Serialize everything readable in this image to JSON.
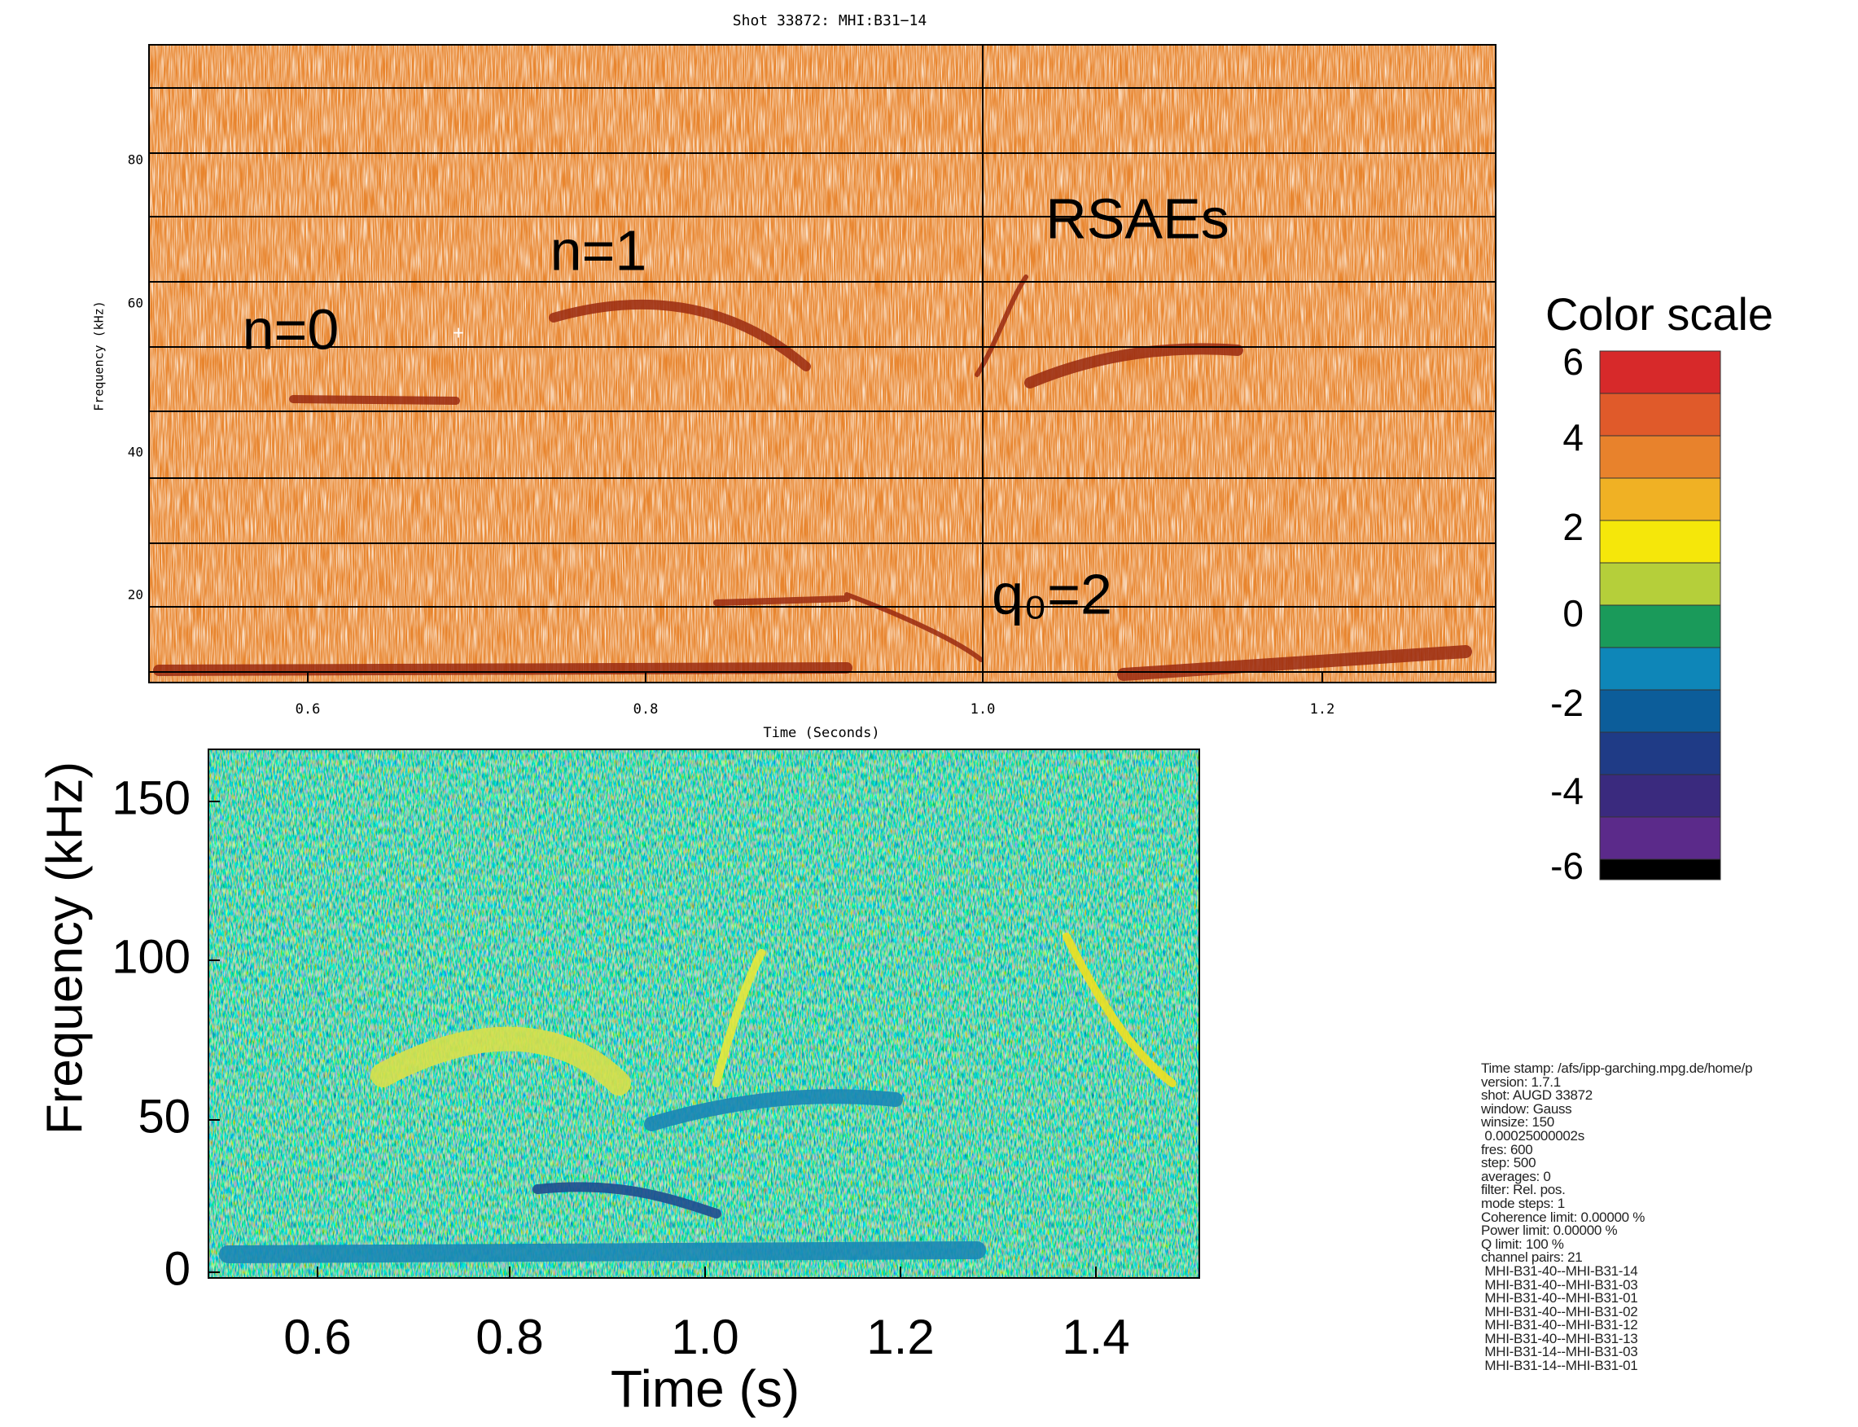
{
  "top_plot": {
    "title": "Shot 33872: MHI:B31−14",
    "y_label": "Frequency (kHz)",
    "x_label": "Time (Seconds)",
    "y_ticks": [
      "80",
      "60",
      "40",
      "20"
    ],
    "x_ticks": [
      "0.6",
      "0.8",
      "1.0",
      "1.2"
    ],
    "annotations": [
      "n=0",
      "n=1",
      "RSAEs",
      "q₀=2"
    ]
  },
  "bottom_plot": {
    "y_label": "Frequency (kHz)",
    "x_label": "Time (s)",
    "y_ticks": [
      "150",
      "100",
      "50",
      "0"
    ],
    "x_ticks": [
      "0.6",
      "0.8",
      "1.0",
      "1.2",
      "1.4"
    ]
  },
  "color_scale": {
    "title": "Color scale",
    "labels": [
      "6",
      "4",
      "2",
      "0",
      "-2",
      "-4",
      "-6"
    ],
    "colors": [
      "#d7292a",
      "#e05a2a",
      "#e8822c",
      "#f0b124",
      "#f5e70a",
      "#b5cf3a",
      "#1a9a5a",
      "#0e86b8",
      "#0c5d9a",
      "#1f3b86",
      "#3a2a7e",
      "#5b2a8a",
      "#000000"
    ]
  },
  "info": {
    "lines": [
      "Time stamp: /afs/ipp-garching.mpg.de/home/p",
      "version: 1.7.1",
      "shot: AUGD 33872",
      "window: Gauss",
      "winsize: 150",
      " 0.00025000002s",
      "fres: 600",
      "step: 500",
      "averages: 0",
      "filter: Rel. pos.",
      "mode steps: 1",
      "Coherence limit: 0.00000 %",
      "Power limit: 0.00000 %",
      "Q limit: 100 %",
      "channel pairs: 21",
      " MHI-B31-40--MHI-B31-14",
      " MHI-B31-40--MHI-B31-03",
      " MHI-B31-40--MHI-B31-01",
      " MHI-B31-40--MHI-B31-02",
      " MHI-B31-40--MHI-B31-12",
      " MHI-B31-40--MHI-B31-13",
      " MHI-B31-14--MHI-B31-03",
      " MHI-B31-14--MHI-B31-01"
    ]
  }
}
